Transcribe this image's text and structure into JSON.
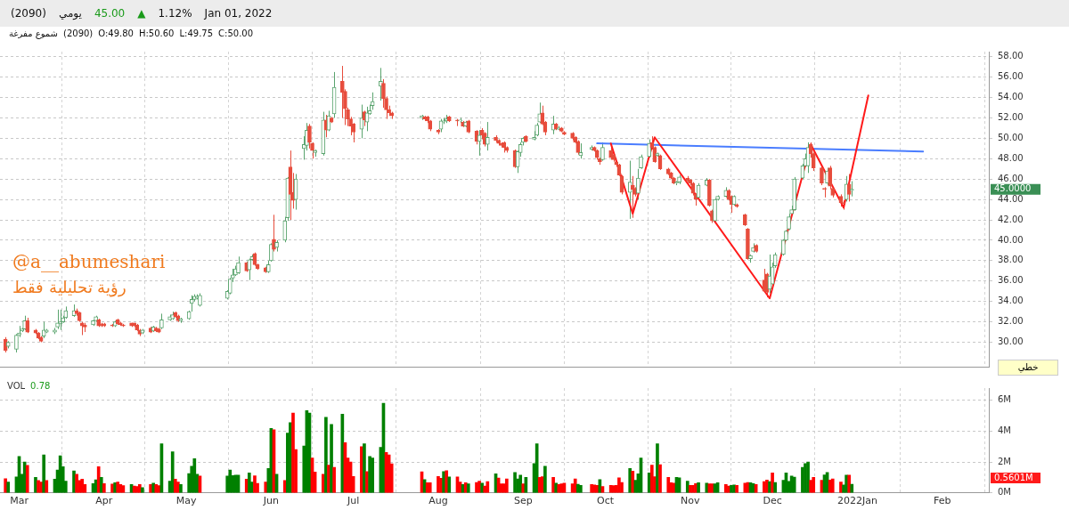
{
  "chart_data": [
    {
      "type": "candlestick",
      "x": [
        "2021-02-24",
        "2021-02-25",
        "2021-02-28",
        "2021-03-01",
        "2021-03-02",
        "2021-03-03",
        "2021-03-04",
        "2021-03-07",
        "2021-03-08",
        "2021-03-09",
        "2021-03-10",
        "2021-03-11",
        "2021-03-14",
        "2021-03-15",
        "2021-03-16",
        "2021-03-17",
        "2021-03-18",
        "2021-03-21",
        "2021-03-22",
        "2021-03-23",
        "2021-03-24",
        "2021-03-25",
        "2021-03-28",
        "2021-03-29",
        "2021-03-30",
        "2021-03-31",
        "2021-04-01",
        "2021-04-04",
        "2021-04-05",
        "2021-04-06",
        "2021-04-07",
        "2021-04-08",
        "2021-04-11",
        "2021-04-12",
        "2021-04-13",
        "2021-04-14",
        "2021-04-15",
        "2021-04-18",
        "2021-04-19",
        "2021-04-20",
        "2021-04-21",
        "2021-04-22",
        "2021-04-25",
        "2021-04-26",
        "2021-04-27",
        "2021-04-28",
        "2021-04-29",
        "2021-05-02",
        "2021-05-03",
        "2021-05-04",
        "2021-05-05",
        "2021-05-06",
        "2021-05-16",
        "2021-05-17",
        "2021-05-18",
        "2021-05-19",
        "2021-05-20",
        "2021-05-23",
        "2021-05-24",
        "2021-05-25",
        "2021-05-26",
        "2021-05-27",
        "2021-05-30",
        "2021-05-31",
        "2021-06-01",
        "2021-06-02",
        "2021-06-03",
        "2021-06-06",
        "2021-06-07",
        "2021-06-08",
        "2021-06-09",
        "2021-06-10",
        "2021-06-13",
        "2021-06-14",
        "2021-06-15",
        "2021-06-16",
        "2021-06-17",
        "2021-06-20",
        "2021-06-21",
        "2021-06-22",
        "2021-06-23",
        "2021-06-24",
        "2021-06-27",
        "2021-06-28",
        "2021-06-29",
        "2021-06-30",
        "2021-07-01",
        "2021-07-04",
        "2021-07-05",
        "2021-07-06",
        "2021-07-07",
        "2021-07-08",
        "2021-07-11",
        "2021-07-12",
        "2021-07-13",
        "2021-07-14",
        "2021-07-15",
        "2021-07-26",
        "2021-07-27",
        "2021-07-28",
        "2021-07-29",
        "2021-08-01",
        "2021-08-02",
        "2021-08-03",
        "2021-08-04",
        "2021-08-05",
        "2021-08-08",
        "2021-08-09",
        "2021-08-10",
        "2021-08-11",
        "2021-08-12",
        "2021-08-15",
        "2021-08-16",
        "2021-08-17",
        "2021-08-18",
        "2021-08-19",
        "2021-08-22",
        "2021-08-23",
        "2021-08-24",
        "2021-08-25",
        "2021-08-26",
        "2021-08-29",
        "2021-08-30",
        "2021-08-31",
        "2021-09-01",
        "2021-09-02",
        "2021-09-05",
        "2021-09-06",
        "2021-09-07",
        "2021-09-08",
        "2021-09-09",
        "2021-09-12",
        "2021-09-13",
        "2021-09-14",
        "2021-09-15",
        "2021-09-16",
        "2021-09-19",
        "2021-09-20",
        "2021-09-21",
        "2021-09-22",
        "2021-09-26",
        "2021-09-27",
        "2021-09-28",
        "2021-09-29",
        "2021-09-30",
        "2021-10-03",
        "2021-10-04",
        "2021-10-05",
        "2021-10-06",
        "2021-10-07",
        "2021-10-10",
        "2021-10-11",
        "2021-10-12",
        "2021-10-13",
        "2021-10-14",
        "2021-10-17",
        "2021-10-18",
        "2021-10-19",
        "2021-10-20",
        "2021-10-21",
        "2021-10-24",
        "2021-10-25",
        "2021-10-26",
        "2021-10-27",
        "2021-10-28",
        "2021-10-31",
        "2021-11-01",
        "2021-11-02",
        "2021-11-03",
        "2021-11-04",
        "2021-11-07",
        "2021-11-08",
        "2021-11-09",
        "2021-11-10",
        "2021-11-11",
        "2021-11-14",
        "2021-11-15",
        "2021-11-16",
        "2021-11-17",
        "2021-11-18",
        "2021-11-21",
        "2021-11-22",
        "2021-11-23",
        "2021-11-24",
        "2021-11-25",
        "2021-11-28",
        "2021-11-29",
        "2021-11-30",
        "2021-12-01",
        "2021-12-02",
        "2021-12-05",
        "2021-12-06",
        "2021-12-07",
        "2021-12-08",
        "2021-12-09",
        "2021-12-12",
        "2021-12-13",
        "2021-12-14",
        "2021-12-15",
        "2021-12-16",
        "2021-12-19",
        "2021-12-20",
        "2021-12-21",
        "2021-12-22",
        "2021-12-23",
        "2021-12-26",
        "2021-12-27",
        "2021-12-28",
        "2021-12-29",
        "2021-12-30"
      ],
      "ohlc": [
        [
          30.3,
          30.5,
          29.0,
          29.2
        ],
        [
          29.6,
          30.1,
          29.4,
          30.0
        ],
        [
          29.3,
          30.8,
          29.0,
          30.7
        ],
        [
          30.7,
          31.6,
          30.5,
          30.9
        ],
        [
          31.1,
          31.4,
          31.0,
          31.3
        ],
        [
          31.3,
          32.6,
          31.2,
          32.1
        ],
        [
          32.1,
          32.4,
          30.9,
          31.0
        ],
        [
          31.2,
          31.3,
          30.8,
          30.9
        ],
        [
          30.9,
          31.0,
          30.3,
          30.4
        ],
        [
          30.5,
          30.6,
          30.0,
          30.1
        ],
        [
          30.6,
          32.0,
          30.4,
          31.2
        ],
        [
          31.0,
          31.3,
          30.9,
          31.2
        ],
        [
          31.0,
          31.4,
          30.8,
          31.2
        ],
        [
          31.5,
          33.2,
          31.3,
          31.9
        ],
        [
          31.8,
          33.2,
          31.2,
          32.0
        ],
        [
          32.0,
          32.6,
          31.9,
          32.4
        ],
        [
          32.4,
          33.5,
          32.3,
          33.1
        ],
        [
          32.6,
          33.7,
          32.5,
          33.1
        ],
        [
          33.1,
          33.3,
          32.6,
          32.8
        ],
        [
          32.9,
          33.0,
          32.0,
          32.1
        ],
        [
          31.9,
          32.0,
          30.7,
          31.6
        ],
        [
          31.7,
          31.9,
          31.0,
          31.5
        ],
        [
          31.7,
          32.2,
          31.6,
          32.1
        ],
        [
          32.1,
          32.6,
          32.0,
          32.5
        ],
        [
          32.2,
          32.3,
          31.5,
          31.6
        ],
        [
          31.8,
          31.9,
          31.5,
          31.6
        ],
        [
          31.8,
          31.9,
          31.5,
          31.6
        ],
        [
          31.7,
          31.8,
          31.5,
          31.6
        ],
        [
          31.6,
          32.1,
          31.5,
          32.0
        ],
        [
          32.2,
          32.3,
          31.7,
          31.8
        ],
        [
          31.9,
          32.0,
          31.6,
          31.7
        ],
        [
          31.7,
          31.8,
          31.5,
          31.6
        ],
        [
          31.9,
          31.9,
          31.5,
          31.6
        ],
        [
          31.9,
          31.9,
          31.5,
          31.6
        ],
        [
          31.7,
          31.8,
          31.1,
          31.2
        ],
        [
          31.2,
          31.3,
          30.6,
          30.8
        ],
        [
          30.9,
          31.3,
          30.8,
          31.2
        ],
        [
          31.4,
          31.5,
          30.9,
          31.0
        ],
        [
          31.1,
          31.6,
          31.0,
          31.5
        ],
        [
          31.4,
          31.5,
          31.0,
          31.1
        ],
        [
          31.3,
          31.4,
          30.9,
          31.0
        ],
        [
          31.4,
          32.8,
          31.3,
          32.2
        ],
        [
          32.2,
          32.7,
          32.1,
          32.5
        ],
        [
          32.3,
          33.0,
          32.2,
          32.7
        ],
        [
          32.9,
          33.0,
          32.4,
          32.5
        ],
        [
          32.6,
          32.7,
          32.0,
          32.1
        ],
        [
          32.1,
          32.4,
          31.9,
          32.3
        ],
        [
          32.3,
          33.1,
          32.2,
          33.0
        ],
        [
          33.8,
          34.6,
          33.0,
          34.2
        ],
        [
          34.2,
          34.7,
          34.0,
          34.5
        ],
        [
          34.3,
          34.7,
          34.2,
          34.5
        ],
        [
          33.6,
          34.8,
          33.5,
          34.6
        ],
        [
          34.3,
          35.1,
          34.2,
          35.0
        ],
        [
          34.8,
          36.3,
          34.7,
          36.2
        ],
        [
          36.3,
          37.2,
          35.9,
          36.6
        ],
        [
          36.6,
          37.5,
          36.5,
          37.2
        ],
        [
          36.8,
          38.4,
          36.7,
          37.8
        ],
        [
          37.8,
          37.9,
          36.9,
          37.0
        ],
        [
          37.1,
          38.2,
          36.1,
          38.1
        ],
        [
          38.1,
          38.6,
          38.0,
          38.4
        ],
        [
          38.7,
          38.8,
          37.5,
          37.6
        ],
        [
          37.6,
          37.7,
          37.1,
          37.2
        ],
        [
          37.3,
          37.4,
          36.8,
          36.9
        ],
        [
          36.9,
          38.0,
          36.8,
          37.6
        ],
        [
          38.0,
          39.7,
          37.9,
          39.6
        ],
        [
          40.1,
          42.5,
          38.9,
          39.1
        ],
        [
          39.3,
          40.0,
          38.9,
          39.8
        ],
        [
          40.0,
          42.3,
          39.8,
          41.9
        ],
        [
          42.2,
          46.2,
          41.9,
          46.1
        ],
        [
          47.2,
          48.8,
          42.0,
          44.5
        ],
        [
          44.7,
          46.6,
          43.1,
          43.9
        ],
        [
          44.0,
          46.5,
          43.0,
          46.0
        ],
        [
          49.0,
          50.2,
          47.9,
          49.4
        ],
        [
          49.3,
          51.5,
          48.8,
          50.8
        ],
        [
          51.2,
          51.4,
          49.0,
          49.6
        ],
        [
          49.5,
          49.6,
          48.0,
          48.8
        ],
        [
          48.6,
          48.9,
          48.2,
          48.8
        ],
        [
          48.5,
          52.6,
          48.3,
          51.8
        ],
        [
          51.8,
          52.3,
          50.1,
          50.8
        ],
        [
          50.8,
          52.7,
          50.7,
          52.2
        ],
        [
          52.0,
          52.1,
          51.5,
          51.6
        ],
        [
          52.4,
          56.5,
          52.0,
          55.0
        ],
        [
          55.6,
          57.1,
          52.0,
          54.5
        ],
        [
          54.6,
          54.8,
          51.3,
          52.9
        ],
        [
          52.8,
          53.0,
          51.2,
          51.9
        ],
        [
          51.9,
          52.1,
          50.3,
          51.2
        ],
        [
          51.4,
          51.5,
          49.6,
          50.6
        ],
        [
          50.9,
          53.3,
          50.0,
          52.0
        ],
        [
          52.6,
          52.7,
          51.2,
          51.8
        ],
        [
          51.6,
          53.1,
          50.7,
          52.5
        ],
        [
          52.4,
          53.3,
          52.3,
          52.7
        ],
        [
          53.2,
          54.5,
          52.8,
          53.6
        ],
        [
          55.1,
          56.9,
          53.7,
          55.6
        ],
        [
          55.4,
          55.8,
          53.0,
          53.9
        ],
        [
          53.9,
          54.1,
          51.9,
          52.8
        ],
        [
          52.8,
          53.2,
          52.2,
          52.5
        ],
        [
          52.5,
          52.6,
          51.9,
          52.2
        ],
        [
          52.0,
          52.3,
          51.8,
          52.2
        ],
        [
          52.1,
          52.2,
          51.7,
          51.9
        ],
        [
          52.1,
          52.2,
          51.5,
          51.7
        ],
        [
          51.7,
          51.8,
          50.7,
          50.9
        ],
        [
          50.8,
          50.9,
          50.4,
          50.6
        ],
        [
          50.9,
          51.9,
          50.6,
          51.7
        ],
        [
          51.6,
          52.0,
          51.4,
          51.7
        ],
        [
          51.7,
          52.3,
          51.5,
          51.9
        ],
        [
          52.1,
          52.2,
          51.6,
          51.7
        ],
        [
          51.8,
          51.9,
          51.2,
          51.7
        ],
        [
          51.7,
          52.0,
          51.5,
          51.8
        ],
        [
          51.6,
          51.7,
          51.1,
          51.2
        ],
        [
          51.2,
          51.7,
          51.1,
          51.6
        ],
        [
          51.7,
          51.8,
          50.5,
          50.6
        ],
        [
          50.7,
          50.8,
          49.4,
          49.7
        ],
        [
          49.7,
          50.8,
          48.3,
          50.3
        ],
        [
          50.8,
          51.0,
          49.9,
          50.3
        ],
        [
          50.5,
          50.6,
          49.2,
          49.4
        ],
        [
          49.4,
          51.6,
          48.8,
          50.1
        ],
        [
          50.1,
          50.3,
          49.6,
          49.8
        ],
        [
          49.8,
          49.9,
          49.3,
          49.5
        ],
        [
          49.5,
          49.6,
          49.1,
          49.3
        ],
        [
          49.6,
          49.7,
          48.6,
          49.1
        ],
        [
          49.1,
          49.2,
          48.6,
          48.8
        ],
        [
          48.8,
          48.9,
          47.1,
          47.2
        ],
        [
          47.2,
          48.8,
          46.6,
          48.7
        ],
        [
          48.6,
          49.6,
          48.2,
          49.4
        ],
        [
          49.6,
          50.1,
          49.3,
          50.0
        ],
        [
          50.2,
          50.3,
          49.6,
          49.7
        ],
        [
          49.9,
          50.7,
          49.8,
          50.1
        ],
        [
          50.3,
          51.5,
          50.2,
          51.3
        ],
        [
          51.6,
          53.5,
          51.5,
          52.4
        ],
        [
          52.5,
          53.2,
          51.3,
          51.4
        ],
        [
          51.6,
          51.7,
          50.3,
          50.6
        ],
        [
          50.8,
          52.2,
          50.4,
          51.4
        ],
        [
          51.4,
          51.5,
          50.8,
          50.9
        ],
        [
          50.9,
          51.2,
          50.8,
          51.0
        ],
        [
          51.0,
          51.1,
          50.6,
          50.7
        ],
        [
          50.6,
          50.7,
          50.3,
          50.4
        ],
        [
          50.5,
          50.6,
          49.8,
          50.0
        ],
        [
          50.1,
          50.2,
          49.5,
          49.6
        ],
        [
          49.7,
          49.8,
          48.4,
          48.6
        ],
        [
          48.3,
          49.5,
          48.0,
          48.6
        ],
        [
          48.9,
          49.3,
          48.8,
          49.1
        ],
        [
          49.1,
          49.2,
          48.7,
          48.8
        ],
        [
          48.8,
          48.9,
          47.9,
          48.1
        ],
        [
          48.0,
          48.1,
          47.4,
          47.7
        ],
        [
          47.9,
          49.6,
          47.8,
          49.1
        ],
        [
          48.8,
          49.4,
          47.9,
          48.1
        ],
        [
          48.4,
          48.6,
          47.7,
          47.9
        ],
        [
          47.7,
          47.8,
          47.2,
          47.4
        ],
        [
          47.4,
          47.5,
          46.3,
          46.4
        ],
        [
          46.3,
          46.4,
          44.5,
          44.7
        ],
        [
          44.7,
          47.8,
          42.1,
          45.7
        ],
        [
          45.4,
          46.3,
          42.2,
          45.0
        ],
        [
          45.1,
          45.2,
          44.3,
          44.5
        ],
        [
          44.6,
          47.0,
          44.0,
          46.1
        ],
        [
          47.1,
          48.4,
          47.0,
          48.2
        ],
        [
          48.2,
          49.9,
          48.1,
          49.5
        ],
        [
          49.6,
          50.2,
          48.9,
          49.1
        ],
        [
          49.1,
          49.2,
          47.6,
          47.7
        ],
        [
          48.3,
          48.6,
          48.2,
          48.5
        ],
        [
          48.3,
          48.4,
          46.9,
          47.0
        ],
        [
          47.0,
          47.1,
          46.4,
          46.5
        ],
        [
          46.6,
          46.7,
          46.0,
          46.1
        ],
        [
          46.1,
          46.2,
          45.5,
          45.6
        ],
        [
          45.6,
          45.8,
          45.4,
          45.7
        ],
        [
          45.7,
          46.4,
          45.5,
          46.2
        ],
        [
          46.1,
          46.3,
          45.7,
          45.8
        ],
        [
          45.9,
          46.0,
          45.4,
          45.6
        ],
        [
          45.6,
          45.7,
          44.4,
          44.6
        ],
        [
          44.5,
          44.6,
          43.4,
          44.0
        ],
        [
          44.2,
          45.6,
          44.1,
          45.4
        ],
        [
          45.4,
          46.1,
          45.3,
          45.9
        ],
        [
          45.9,
          46.0,
          43.3,
          43.4
        ],
        [
          42.9,
          43.0,
          41.7,
          41.9
        ],
        [
          41.9,
          44.1,
          41.8,
          44.0
        ],
        [
          44.0,
          44.4,
          43.9,
          44.3
        ],
        [
          44.3,
          45.2,
          44.2,
          44.9
        ],
        [
          44.9,
          45.0,
          43.9,
          44.0
        ],
        [
          44.3,
          44.4,
          42.7,
          43.5
        ],
        [
          43.5,
          44.4,
          43.4,
          44.3
        ],
        [
          43.5,
          43.6,
          43.2,
          43.3
        ],
        [
          42.5,
          42.6,
          41.4,
          41.5
        ],
        [
          41.1,
          41.2,
          38.1,
          38.2
        ],
        [
          38.2,
          38.6,
          37.8,
          38.5
        ],
        [
          38.9,
          39.7,
          38.8,
          39.3
        ],
        [
          39.5,
          39.6,
          38.8,
          38.9
        ],
        [
          36.1,
          37.2,
          34.9,
          35.0
        ],
        [
          36.7,
          36.8,
          34.4,
          34.9
        ],
        [
          35.2,
          38.6,
          34.8,
          36.5
        ],
        [
          35.7,
          37.8,
          35.5,
          37.4
        ],
        [
          37.5,
          38.8,
          37.3,
          38.6
        ],
        [
          38.6,
          40.1,
          38.5,
          40.0
        ],
        [
          40.0,
          41.0,
          39.9,
          40.9
        ],
        [
          41.1,
          42.6,
          41.0,
          42.3
        ],
        [
          42.6,
          43.4,
          42.5,
          43.0
        ],
        [
          43.0,
          46.2,
          42.9,
          46.0
        ],
        [
          46.1,
          47.5,
          46.0,
          47.3
        ],
        [
          47.3,
          48.5,
          47.2,
          48.0
        ],
        [
          47.3,
          49.6,
          46.6,
          49.1
        ],
        [
          49.4,
          49.6,
          48.1,
          48.5
        ],
        [
          48.5,
          48.6,
          46.8,
          47.1
        ],
        [
          47.1,
          47.2,
          45.4,
          45.6
        ],
        [
          45.1,
          45.2,
          44.2,
          45.0
        ],
        [
          45.6,
          47.1,
          45.4,
          46.8
        ],
        [
          47.1,
          47.3,
          45.0,
          45.3
        ],
        [
          45.1,
          45.2,
          44.2,
          44.4
        ],
        [
          44.3,
          44.5,
          43.3,
          43.7
        ],
        [
          43.7,
          43.9,
          43.0,
          43.6
        ],
        [
          44.0,
          46.3,
          43.8,
          45.5
        ],
        [
          45.5,
          46.5,
          43.8,
          44.5
        ],
        [
          44.9,
          45.8,
          44.3,
          45.0
        ]
      ],
      "series": [
        {
          "type": "line",
          "color": "#ff1a1a",
          "x": [
            "2021-10-03",
            "2021-10-11",
            "2021-10-19",
            "2021-11-30",
            "2021-12-15",
            "2021-12-27",
            "2022-01-05"
          ],
          "values": [
            49.5,
            42.6,
            50.1,
            34.3,
            49.4,
            43.2,
            54.2
          ]
        },
        {
          "type": "line",
          "color": "#4a7dff",
          "x": [
            "2021-09-28",
            "2022-01-25"
          ],
          "values": [
            49.5,
            48.7
          ]
        }
      ],
      "xlim": [
        "2021-02-22",
        "2022-02-18"
      ],
      "xticks": [
        {
          "value": "2021-03-01",
          "label": null
        },
        {
          "value": "2021-04-01",
          "label": null
        },
        {
          "value": "2021-05-01",
          "label": null
        },
        {
          "value": "2021-06-01",
          "label": null
        },
        {
          "value": "2021-07-01",
          "label": null
        },
        {
          "value": "2021-08-01",
          "label": null
        },
        {
          "value": "2021-09-01",
          "label": null
        },
        {
          "value": "2021-10-01",
          "label": null
        },
        {
          "value": "2021-11-01",
          "label": null
        },
        {
          "value": "2021-12-01",
          "label": null
        },
        {
          "value": "2022-01-01",
          "label": null
        },
        {
          "value": "2022-02-01",
          "label": null
        }
      ],
      "ylim": [
        27.6,
        58.5
      ],
      "yticks": [
        {
          "value": 30,
          "label": "30.00"
        },
        {
          "value": 32,
          "label": "32.00"
        },
        {
          "value": 34,
          "label": "34.00"
        },
        {
          "value": 36,
          "label": "36.00"
        },
        {
          "value": 38,
          "label": "38.00"
        },
        {
          "value": 40,
          "label": "40.00"
        },
        {
          "value": 42,
          "label": "42.00"
        },
        {
          "value": 44,
          "label": "44.00"
        },
        {
          "value": 46,
          "label": "46.00"
        },
        {
          "value": 48,
          "label": "48.00"
        },
        {
          "value": 50,
          "label": "50.00"
        },
        {
          "value": 52,
          "label": "52.00"
        },
        {
          "value": 54,
          "label": "54.00"
        },
        {
          "value": 56,
          "label": "56.00"
        },
        {
          "value": 58,
          "label": "58.00"
        }
      ],
      "grid": true,
      "legend": false,
      "tick_labels": "y",
      "annotations": [
        "(2090)",
        "يومي",
        "45.00",
        "▲",
        "1.12%",
        "Jan 01, 2022",
        "شموع مفرغة",
        "(2090)",
        "O:49.80",
        "H:50.60",
        "L:49.75",
        "C:50.00",
        "@a__abumeshari",
        "رؤية تحليلية فقط",
        "خطي",
        "45.0000"
      ]
    },
    {
      "type": "bar",
      "title": "VOL",
      "x": [
        "2021-02-24",
        "2021-02-25",
        "2021-02-28",
        "2021-03-01",
        "2021-03-02",
        "2021-03-03",
        "2021-03-04",
        "2021-03-07",
        "2021-03-08",
        "2021-03-09",
        "2021-03-10",
        "2021-03-11",
        "2021-03-14",
        "2021-03-15",
        "2021-03-16",
        "2021-03-17",
        "2021-03-18",
        "2021-03-21",
        "2021-03-22",
        "2021-03-23",
        "2021-03-24",
        "2021-03-25",
        "2021-03-28",
        "2021-03-29",
        "2021-03-30",
        "2021-03-31",
        "2021-04-01",
        "2021-04-04",
        "2021-04-05",
        "2021-04-06",
        "2021-04-07",
        "2021-04-08",
        "2021-04-11",
        "2021-04-12",
        "2021-04-13",
        "2021-04-14",
        "2021-04-15",
        "2021-04-18",
        "2021-04-19",
        "2021-04-20",
        "2021-04-21",
        "2021-04-22",
        "2021-04-25",
        "2021-04-26",
        "2021-04-27",
        "2021-04-28",
        "2021-04-29",
        "2021-05-02",
        "2021-05-03",
        "2021-05-04",
        "2021-05-05",
        "2021-05-06",
        "2021-05-16",
        "2021-05-17",
        "2021-05-18",
        "2021-05-19",
        "2021-05-20",
        "2021-05-23",
        "2021-05-24",
        "2021-05-25",
        "2021-05-26",
        "2021-05-27",
        "2021-05-30",
        "2021-05-31",
        "2021-06-01",
        "2021-06-02",
        "2021-06-03",
        "2021-06-06",
        "2021-06-07",
        "2021-06-08",
        "2021-06-09",
        "2021-06-10",
        "2021-06-13",
        "2021-06-14",
        "2021-06-15",
        "2021-06-16",
        "2021-06-17",
        "2021-06-20",
        "2021-06-21",
        "2021-06-22",
        "2021-06-23",
        "2021-06-24",
        "2021-06-27",
        "2021-06-28",
        "2021-06-29",
        "2021-06-30",
        "2021-07-01",
        "2021-07-04",
        "2021-07-05",
        "2021-07-06",
        "2021-07-07",
        "2021-07-08",
        "2021-07-11",
        "2021-07-12",
        "2021-07-13",
        "2021-07-14",
        "2021-07-15",
        "2021-07-26",
        "2021-07-27",
        "2021-07-28",
        "2021-07-29",
        "2021-08-01",
        "2021-08-02",
        "2021-08-03",
        "2021-08-04",
        "2021-08-05",
        "2021-08-08",
        "2021-08-09",
        "2021-08-10",
        "2021-08-11",
        "2021-08-12",
        "2021-08-15",
        "2021-08-16",
        "2021-08-17",
        "2021-08-18",
        "2021-08-19",
        "2021-08-22",
        "2021-08-23",
        "2021-08-24",
        "2021-08-25",
        "2021-08-26",
        "2021-08-29",
        "2021-08-30",
        "2021-08-31",
        "2021-09-01",
        "2021-09-02",
        "2021-09-05",
        "2021-09-06",
        "2021-09-07",
        "2021-09-08",
        "2021-09-09",
        "2021-09-12",
        "2021-09-13",
        "2021-09-14",
        "2021-09-15",
        "2021-09-16",
        "2021-09-19",
        "2021-09-20",
        "2021-09-21",
        "2021-09-22",
        "2021-09-26",
        "2021-09-27",
        "2021-09-28",
        "2021-09-29",
        "2021-09-30",
        "2021-10-03",
        "2021-10-04",
        "2021-10-05",
        "2021-10-06",
        "2021-10-07",
        "2021-10-10",
        "2021-10-11",
        "2021-10-12",
        "2021-10-13",
        "2021-10-14",
        "2021-10-17",
        "2021-10-18",
        "2021-10-19",
        "2021-10-20",
        "2021-10-21",
        "2021-10-24",
        "2021-10-25",
        "2021-10-26",
        "2021-10-27",
        "2021-10-28",
        "2021-10-31",
        "2021-11-01",
        "2021-11-02",
        "2021-11-03",
        "2021-11-04",
        "2021-11-07",
        "2021-11-08",
        "2021-11-09",
        "2021-11-10",
        "2021-11-11",
        "2021-11-14",
        "2021-11-15",
        "2021-11-16",
        "2021-11-17",
        "2021-11-18",
        "2021-11-21",
        "2021-11-22",
        "2021-11-23",
        "2021-11-24",
        "2021-11-25",
        "2021-11-28",
        "2021-11-29",
        "2021-11-30",
        "2021-12-01",
        "2021-12-02",
        "2021-12-05",
        "2021-12-06",
        "2021-12-07",
        "2021-12-08",
        "2021-12-09",
        "2021-12-12",
        "2021-12-13",
        "2021-12-14",
        "2021-12-15",
        "2021-12-16",
        "2021-12-19",
        "2021-12-20",
        "2021-12-21",
        "2021-12-22",
        "2021-12-23",
        "2021-12-26",
        "2021-12-27",
        "2021-12-28",
        "2021-12-29",
        "2021-12-30"
      ],
      "values": [
        0.92,
        0.71,
        1.04,
        2.36,
        1.21,
        2.01,
        1.79,
        1.01,
        0.8,
        0.71,
        2.46,
        0.8,
        0.9,
        1.49,
        2.41,
        1.7,
        0.76,
        1.42,
        1.21,
        0.81,
        0.9,
        0.55,
        0.61,
        0.85,
        1.7,
        1.01,
        0.61,
        0.57,
        0.66,
        0.71,
        0.55,
        0.47,
        0.55,
        0.45,
        0.42,
        0.55,
        0.35,
        0.55,
        0.64,
        0.54,
        0.47,
        3.19,
        0.76,
        2.67,
        0.9,
        0.71,
        0.55,
        1.25,
        1.73,
        2.22,
        1.21,
        1.09,
        1.09,
        1.49,
        1.13,
        1.16,
        1.16,
        0.9,
        1.3,
        0.71,
        1.11,
        0.62,
        0.71,
        1.59,
        4.18,
        4.09,
        1.21,
        0.81,
        3.88,
        4.56,
        5.18,
        2.81,
        3.05,
        5.34,
        5.18,
        2.27,
        1.35,
        1.21,
        4.9,
        1.8,
        4.45,
        1.66,
        5.1,
        3.26,
        2.27,
        2.01,
        1.06,
        3.0,
        3.19,
        1.39,
        2.36,
        2.27,
        2.95,
        5.82,
        2.62,
        2.46,
        1.89,
        1.37,
        0.87,
        0.66,
        0.66,
        1.06,
        0.95,
        1.39,
        1.44,
        1.04,
        1.04,
        0.71,
        0.55,
        0.66,
        0.59,
        0.68,
        0.77,
        0.63,
        0.44,
        0.73,
        1.24,
        0.96,
        0.59,
        0.59,
        0.91,
        1.33,
        0.91,
        1.15,
        0.59,
        1.01,
        1.9,
        3.19,
        1.01,
        1.05,
        1.73,
        1.01,
        0.63,
        0.54,
        0.59,
        0.63,
        0.59,
        0.91,
        0.56,
        0.49,
        0.54,
        0.52,
        0.49,
        0.87,
        0.42,
        0.49,
        0.47,
        0.49,
        0.98,
        0.68,
        1.59,
        1.41,
        0.82,
        1.24,
        2.27,
        1.29,
        1.8,
        1.05,
        3.19,
        1.83,
        1.01,
        0.66,
        0.63,
        1.01,
        0.98,
        0.77,
        0.49,
        0.49,
        0.61,
        0.66,
        0.63,
        0.59,
        0.59,
        0.59,
        0.66,
        0.54,
        0.44,
        0.49,
        0.52,
        0.49,
        0.63,
        0.68,
        0.66,
        0.61,
        0.54,
        0.73,
        0.84,
        0.73,
        1.29,
        0.68,
        0.82,
        1.29,
        0.75,
        1.1,
        1.03,
        1.66,
        1.9,
        2.01,
        0.82,
        1.01,
        0.82,
        1.17,
        1.33,
        0.84,
        0.91,
        0.7,
        0.52,
        1.15,
        1.15,
        0.56
      ],
      "colors": [
        "#ff0000",
        "#008000",
        "#008000",
        "#008000",
        "#008000",
        "#008000",
        "#ff0000",
        "#008000",
        "#ff0000",
        "#ff0000",
        "#008000",
        "#ff0000",
        "#008000",
        "#008000",
        "#008000",
        "#008000",
        "#008000",
        "#008000",
        "#ff0000",
        "#ff0000",
        "#ff0000",
        "#ff0000",
        "#008000",
        "#008000",
        "#ff0000",
        "#008000",
        "#ff0000",
        "#ff0000",
        "#008000",
        "#ff0000",
        "#ff0000",
        "#ff0000",
        "#008000",
        "#ff0000",
        "#ff0000",
        "#ff0000",
        "#008000",
        "#ff0000",
        "#008000",
        "#ff0000",
        "#ff0000",
        "#008000",
        "#008000",
        "#008000",
        "#ff0000",
        "#ff0000",
        "#008000",
        "#008000",
        "#008000",
        "#008000",
        "#008000",
        "#ff0000",
        "#008000",
        "#008000",
        "#008000",
        "#008000",
        "#008000",
        "#ff0000",
        "#008000",
        "#008000",
        "#ff0000",
        "#ff0000",
        "#ff0000",
        "#008000",
        "#008000",
        "#ff0000",
        "#008000",
        "#ff0000",
        "#008000",
        "#008000",
        "#ff0000",
        "#ff0000",
        "#008000",
        "#008000",
        "#008000",
        "#ff0000",
        "#ff0000",
        "#ff0000",
        "#008000",
        "#ff0000",
        "#008000",
        "#ff0000",
        "#008000",
        "#ff0000",
        "#ff0000",
        "#ff0000",
        "#ff0000",
        "#ff0000",
        "#008000",
        "#ff0000",
        "#008000",
        "#008000",
        "#008000",
        "#008000",
        "#ff0000",
        "#ff0000",
        "#ff0000",
        "#ff0000",
        "#008000",
        "#ff0000",
        "#ff0000",
        "#ff0000",
        "#ff0000",
        "#008000",
        "#ff0000",
        "#008000",
        "#ff0000",
        "#ff0000",
        "#008000",
        "#ff0000",
        "#008000",
        "#ff0000",
        "#ff0000",
        "#008000",
        "#ff0000",
        "#ff0000",
        "#008000",
        "#ff0000",
        "#ff0000",
        "#ff0000",
        "#ff0000",
        "#008000",
        "#008000",
        "#008000",
        "#ff0000",
        "#008000",
        "#008000",
        "#008000",
        "#ff0000",
        "#ff0000",
        "#008000",
        "#ff0000",
        "#008000",
        "#ff0000",
        "#ff0000",
        "#ff0000",
        "#ff0000",
        "#ff0000",
        "#008000",
        "#008000",
        "#ff0000",
        "#ff0000",
        "#ff0000",
        "#008000",
        "#ff0000",
        "#ff0000",
        "#ff0000",
        "#ff0000",
        "#ff0000",
        "#ff0000",
        "#008000",
        "#ff0000",
        "#008000",
        "#008000",
        "#008000",
        "#008000",
        "#ff0000",
        "#ff0000",
        "#008000",
        "#ff0000",
        "#ff0000",
        "#ff0000",
        "#ff0000",
        "#008000",
        "#008000",
        "#008000",
        "#ff0000",
        "#ff0000",
        "#ff0000",
        "#008000",
        "#008000",
        "#ff0000",
        "#ff0000",
        "#008000",
        "#008000",
        "#ff0000",
        "#ff0000",
        "#008000",
        "#008000",
        "#ff0000",
        "#ff0000",
        "#ff0000",
        "#008000",
        "#008000",
        "#ff0000",
        "#ff0000",
        "#ff0000",
        "#008000",
        "#ff0000",
        "#008000",
        "#008000",
        "#008000",
        "#008000",
        "#008000",
        "#008000",
        "#008000",
        "#008000",
        "#008000",
        "#ff0000",
        "#ff0000",
        "#ff0000",
        "#008000",
        "#008000",
        "#ff0000",
        "#ff0000",
        "#ff0000",
        "#008000",
        "#008000",
        "#ff0000",
        "#008000"
      ],
      "xlim": [
        "2021-02-22",
        "2022-02-18"
      ],
      "xticks": [
        {
          "value": "2021-03-01",
          "label": "Mar"
        },
        {
          "value": "2021-04-01",
          "label": "Apr"
        },
        {
          "value": "2021-05-01",
          "label": "May"
        },
        {
          "value": "2021-06-01",
          "label": "Jun"
        },
        {
          "value": "2021-07-01",
          "label": "Jul"
        },
        {
          "value": "2021-08-01",
          "label": "Aug"
        },
        {
          "value": "2021-09-01",
          "label": "Sep"
        },
        {
          "value": "2021-10-01",
          "label": "Oct"
        },
        {
          "value": "2021-11-01",
          "label": "Nov"
        },
        {
          "value": "2021-12-01",
          "label": "Dec"
        },
        {
          "value": "2022-01-01",
          "label": "2022Jan"
        },
        {
          "value": "2022-02-01",
          "label": "Feb"
        }
      ],
      "ylim": [
        0,
        6.8
      ],
      "yticks": [
        {
          "value": 0,
          "label": "0M"
        },
        {
          "value": 2,
          "label": "2M"
        },
        {
          "value": 4,
          "label": "4M"
        },
        {
          "value": 6,
          "label": "6M"
        }
      ],
      "grid": true,
      "legend": false,
      "annotations": [
        "0.78",
        "0.5601M"
      ]
    }
  ]
}
